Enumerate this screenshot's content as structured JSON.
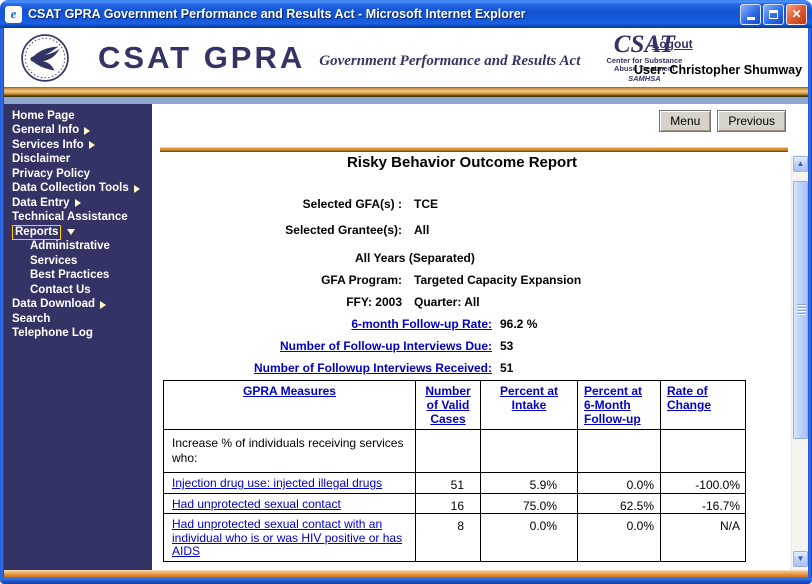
{
  "window_title": "CSAT GPRA Government Performance and Results Act - Microsoft Internet Explorer",
  "icons": {
    "ie": "e",
    "close": "✕",
    "scroll_up": "▲",
    "scroll_down": "▼"
  },
  "colors": {
    "accent_navy": "#333366",
    "link_blue": "#0000cc",
    "sidebar_bg": "#333366",
    "highlight_yellow": "#ffcc00",
    "stripe_orange": "#e0952f",
    "titlebar_blue": "#1557d8"
  },
  "header": {
    "brand_title": "CSAT GPRA",
    "brand_subtitle": "Government Performance and Results Act",
    "agency_logo": {
      "name": "CSAT",
      "line1": "Center for Substance",
      "line2": "Abuse Treatment",
      "line3": "SAMHSA"
    },
    "logout_label": "Logout",
    "user_label": "User: Christopher Shumway"
  },
  "sidebar": {
    "items": [
      {
        "label": "Home Page"
      },
      {
        "label": "General Info",
        "arrow": "right"
      },
      {
        "label": "Services Info",
        "arrow": "right"
      },
      {
        "label": "Disclaimer"
      },
      {
        "label": "Privacy Policy"
      },
      {
        "label": "Data Collection Tools",
        "arrow": "right"
      },
      {
        "label": "Data Entry",
        "arrow": "right"
      },
      {
        "label": "Technical Assistance"
      },
      {
        "label": "Reports",
        "arrow": "down",
        "selected": true
      },
      {
        "label": "Administrative",
        "indent": true
      },
      {
        "label": "Services",
        "indent": true
      },
      {
        "label": "Best Practices",
        "indent": true
      },
      {
        "label": "Contact Us",
        "indent": true
      },
      {
        "label": "Data Download",
        "arrow": "right"
      },
      {
        "label": "Search"
      },
      {
        "label": "Telephone Log"
      }
    ]
  },
  "toolbar": {
    "menu_label": "Menu",
    "previous_label": "Previous"
  },
  "report": {
    "title": "Risky Behavior Outcome Report",
    "selected_gfa_label": "Selected GFA(s) :",
    "selected_gfa_value": "TCE",
    "selected_grantee_label": "Selected Grantee(s):",
    "selected_grantee_value": "All",
    "years_line": "All Years (Separated)",
    "gfa_program_label": "GFA Program:",
    "gfa_program_value": "Targeted Capacity Expansion",
    "ffy_label": "FFY: 2003",
    "quarter_value": "Quarter: All",
    "stats": [
      {
        "label": "6-month Follow-up Rate:",
        "value": "96.2 %"
      },
      {
        "label": "Number of  Follow-up Interviews Due:",
        "value": "53"
      },
      {
        "label": "Number of Followup Interviews Received:",
        "value": "51"
      }
    ]
  },
  "table": {
    "headers": [
      "GPRA Measures",
      "Number of Valid Cases",
      "Percent at Intake",
      "Percent at 6-Month Follow-up",
      "Rate of Change"
    ],
    "intro_row": "Increase % of individuals receiving services who:",
    "rows": [
      {
        "measure": "Injection drug use: injected illegal drugs",
        "valid_cases": "51",
        "intake": "5.9%",
        "followup": "0.0%",
        "change": "-100.0%"
      },
      {
        "measure": "Had unprotected sexual contact",
        "valid_cases": "16",
        "intake": "75.0%",
        "followup": "62.5%",
        "change": "-16.7%"
      },
      {
        "measure": "Had unprotected sexual contact with an individual who is or was HIV positive or has AIDS",
        "valid_cases": "8",
        "intake": "0.0%",
        "followup": "0.0%",
        "change": "N/A"
      }
    ]
  }
}
